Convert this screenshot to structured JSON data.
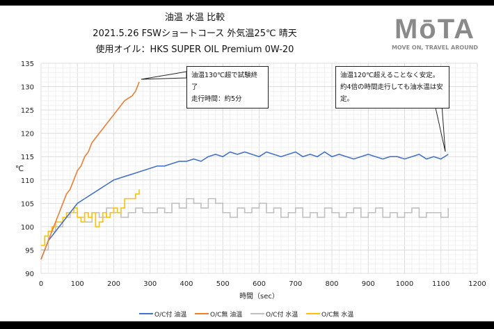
{
  "header": {
    "title": "油温 水温 比較",
    "subtitle": "2021.5.26  FSWショートコース 外気温25℃ 晴天",
    "oil": "使用オイル：HKS SUPER OIL Premium 0W-20"
  },
  "logo": {
    "text": "MōTA",
    "tagline": "MOVE ON, TRAVEL AROUND"
  },
  "annotations": [
    {
      "lines": [
        "油温130℃超で試験終了",
        "走行時間：約5分"
      ]
    },
    {
      "lines": [
        "油温120℃超えることなく安定。",
        "約4倍の時間走行しても油水温は安定。"
      ]
    }
  ],
  "chart_data": {
    "type": "line",
    "title": "",
    "xlabel": "時間（sec）",
    "ylabel": "℃",
    "xlim": [
      0,
      1200
    ],
    "ylim": [
      90,
      135
    ],
    "xticks": [
      0,
      100,
      200,
      300,
      400,
      500,
      600,
      700,
      800,
      900,
      1000,
      1100,
      1200
    ],
    "yticks": [
      90,
      95,
      100,
      105,
      110,
      115,
      120,
      125,
      130,
      135
    ],
    "grid": true,
    "legend": "bottom",
    "series": [
      {
        "name": "O/C付 油温",
        "color": "#4472c4",
        "xstep": 20,
        "values": [
          93,
          97,
          99,
          101,
          103,
          105,
          106,
          107,
          108,
          109,
          110,
          110.5,
          111,
          111.5,
          112,
          112.5,
          113,
          113,
          113.5,
          114,
          114,
          114.5,
          114,
          115,
          115.5,
          115,
          116,
          115.5,
          116,
          115.5,
          115,
          116,
          115.5,
          115,
          115.5,
          116,
          115,
          115.5,
          115,
          116,
          115,
          115.5,
          115,
          114.5,
          115,
          115.5,
          115,
          114.5,
          115,
          115,
          114.5,
          115,
          115.5,
          114.5,
          115,
          114.5,
          115.5
        ]
      },
      {
        "name": "O/C無 油温",
        "color": "#ed7d31",
        "xstep": 10,
        "values": [
          93,
          95,
          97,
          99,
          101,
          103,
          105,
          107,
          108,
          110,
          112,
          113,
          115,
          116,
          118,
          119,
          120,
          121,
          122,
          123,
          124,
          125,
          126,
          127,
          127.5,
          128,
          129,
          131
        ]
      },
      {
        "name": "O/C付 水温",
        "color": "#bfbfbf",
        "xstep": 20,
        "step": true,
        "values": [
          95,
          99,
          100,
          102,
          103,
          102,
          101,
          103,
          102,
          104,
          103,
          102,
          103,
          104,
          103,
          103,
          104,
          103,
          105,
          104,
          106,
          105,
          104,
          106,
          105,
          103,
          102,
          104,
          103,
          104,
          105,
          103,
          104,
          102,
          103,
          104,
          102,
          103,
          102,
          104,
          103,
          102,
          103,
          104,
          102,
          103,
          104,
          102,
          103,
          102,
          103,
          104,
          102,
          103,
          103,
          102,
          104
        ]
      },
      {
        "name": "O/C無 水温",
        "color": "#ffc000",
        "xstep": 10,
        "step": true,
        "values": [
          96,
          98,
          99,
          100,
          101,
          101,
          102,
          103,
          103,
          104,
          102,
          101,
          103,
          102,
          103,
          100,
          101,
          103,
          102,
          103,
          104,
          103,
          104,
          106,
          106,
          106,
          107,
          108
        ]
      }
    ]
  }
}
